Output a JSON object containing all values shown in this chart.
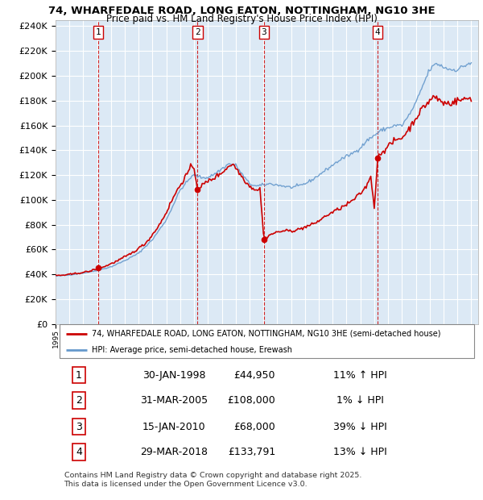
{
  "title": "74, WHARFEDALE ROAD, LONG EATON, NOTTINGHAM, NG10 3HE",
  "subtitle": "Price paid vs. HM Land Registry's House Price Index (HPI)",
  "ylim": [
    0,
    245000
  ],
  "yticks": [
    0,
    20000,
    40000,
    60000,
    80000,
    100000,
    120000,
    140000,
    160000,
    180000,
    200000,
    220000,
    240000
  ],
  "xlim_start": 1995.0,
  "xlim_end": 2025.5,
  "plot_bg": "#dce9f5",
  "sale_color": "#cc0000",
  "hpi_color": "#6699cc",
  "transaction_years": [
    1998.08,
    2005.25,
    2010.04,
    2018.25
  ],
  "transaction_prices": [
    44950,
    108000,
    68000,
    133791
  ],
  "transaction_labels": [
    "1",
    "2",
    "3",
    "4"
  ],
  "legend_label_price": "74, WHARFEDALE ROAD, LONG EATON, NOTTINGHAM, NG10 3HE (semi-detached house)",
  "legend_label_hpi": "HPI: Average price, semi-detached house, Erewash",
  "table_data": [
    [
      "1",
      "30-JAN-1998",
      "£44,950",
      "11% ↑ HPI"
    ],
    [
      "2",
      "31-MAR-2005",
      "£108,000",
      "1% ↓ HPI"
    ],
    [
      "3",
      "15-JAN-2010",
      "£68,000",
      "39% ↓ HPI"
    ],
    [
      "4",
      "29-MAR-2018",
      "£133,791",
      "13% ↓ HPI"
    ]
  ],
  "footer": "Contains HM Land Registry data © Crown copyright and database right 2025.\nThis data is licensed under the Open Government Licence v3.0."
}
